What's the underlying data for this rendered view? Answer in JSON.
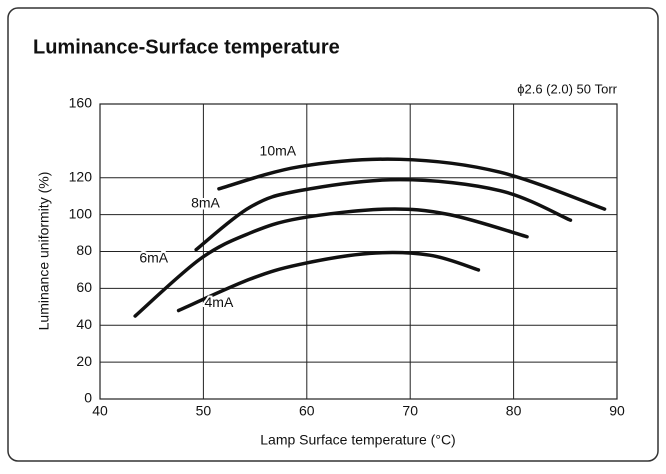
{
  "chart_data": {
    "type": "line",
    "title": "Luminance-Surface temperature",
    "annotation": "ϕ2.6 (2.0) 50 Torr",
    "x_label": "Lamp Surface temperature  (°C)",
    "y_label": "Luminance uniformity (%)",
    "xlim": [
      40,
      90
    ],
    "xticks": [
      40,
      50,
      60,
      70,
      80,
      90
    ],
    "ylim": [
      0,
      160
    ],
    "yticks": [
      0,
      20,
      40,
      60,
      80,
      100,
      120,
      160
    ],
    "grid": true,
    "series": [
      {
        "name": "10mA",
        "color": "#111111",
        "x": [
          51.5,
          59.3,
          69,
          78.7,
          88.8
        ],
        "values": [
          114,
          126,
          130,
          123,
          103
        ]
      },
      {
        "name": "8mA",
        "color": "#111111",
        "x": [
          49.3,
          54.5,
          59.3,
          69,
          78.7,
          85.5
        ],
        "values": [
          81,
          104,
          113,
          119,
          113,
          97
        ]
      },
      {
        "name": "6mA",
        "color": "#111111",
        "x": [
          43.4,
          49.7,
          54.5,
          59.3,
          67.6,
          73.8,
          81.3
        ],
        "values": [
          45,
          76,
          90,
          98,
          103,
          100,
          88
        ]
      },
      {
        "name": "4mA",
        "color": "#111111",
        "x": [
          47.6,
          54.5,
          59.3,
          66.1,
          71.9,
          76.6
        ],
        "values": [
          48,
          65,
          73,
          79,
          78,
          70
        ]
      }
    ]
  }
}
